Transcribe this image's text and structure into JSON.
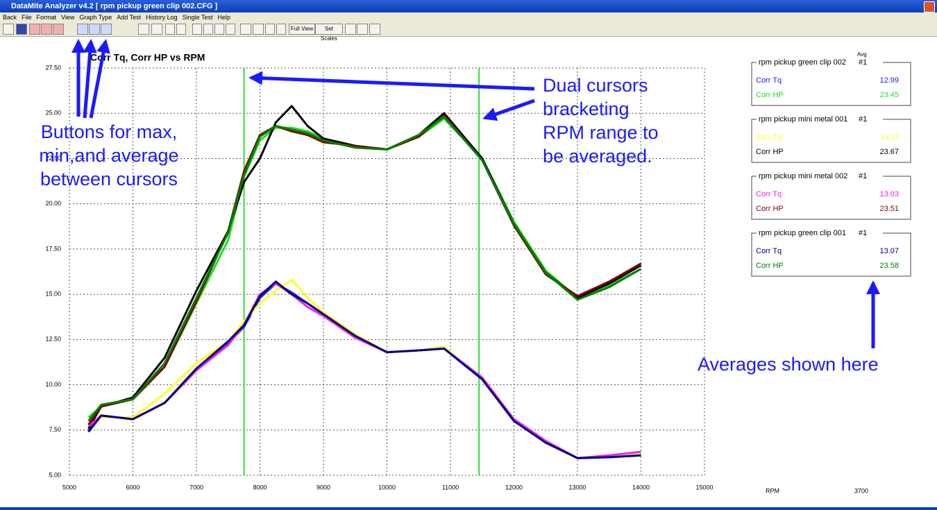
{
  "window": {
    "title": "DataMite Analyzer v4.2  [ rpm pickup green clip 002.CFG ]"
  },
  "menu": [
    "Back",
    "File",
    "Format",
    "View",
    "Graph Type",
    "Add Test",
    "History Log",
    "Single Test",
    "Help"
  ],
  "toolbar": {
    "buttons": [
      "Full View",
      "Set Scales"
    ]
  },
  "chart_data": {
    "type": "line",
    "title": "Corr Tq, Corr HP vs RPM",
    "x": [
      5300,
      5500,
      6000,
      6500,
      7000,
      7500,
      7750,
      8000,
      8250,
      8500,
      8750,
      9000,
      9500,
      10000,
      10500,
      10900,
      11500,
      12000,
      12500,
      13000,
      13500,
      14000
    ],
    "xlim": [
      5000,
      15000
    ],
    "xticks": [
      5000,
      6000,
      7000,
      8000,
      9000,
      10000,
      11000,
      12000,
      13000,
      14000,
      15000
    ],
    "ylim": [
      5,
      27.5
    ],
    "yticks": [
      {
        "value": 5,
        "label": "5.00"
      },
      {
        "value": 7.5,
        "label": "7.50"
      },
      {
        "value": 10,
        "label": "10.00"
      },
      {
        "value": 12.5,
        "label": "12.50"
      },
      {
        "value": 15,
        "label": "15.00"
      },
      {
        "value": 17.5,
        "label": "17.50"
      },
      {
        "value": 20,
        "label": "20.00"
      },
      {
        "value": 22.5,
        "label": "22.50"
      },
      {
        "value": 25,
        "label": "25.00"
      },
      {
        "value": 27.5,
        "label": "27.50"
      }
    ],
    "grid": true,
    "cursors": [
      7750,
      11450
    ],
    "cursor_color": "#33dd33",
    "avg_label": "Avg",
    "groups": [
      {
        "title": "rpm pickup green clip 002",
        "run": "#1"
      },
      {
        "title": "rpm pickup mini metal 001",
        "run": "#1"
      },
      {
        "title": "rpm pickup mini metal 002",
        "run": "#1"
      },
      {
        "title": "rpm pickup green clip 001",
        "run": "#1"
      }
    ],
    "series": [
      {
        "name": "Corr Tq",
        "color": "#1a1aff",
        "average": 12.99,
        "values": [
          7.5,
          8.3,
          8.1,
          9.0,
          10.8,
          12.3,
          13.2,
          14.8,
          15.6,
          15.1,
          14.5,
          13.9,
          12.7,
          11.8,
          11.9,
          12.0,
          10.3,
          8.0,
          6.8,
          5.95,
          6.0,
          6.1
        ]
      },
      {
        "name": "Corr HP",
        "color": "#22dd22",
        "average": 23.45,
        "values": [
          8.2,
          8.8,
          9.2,
          11.0,
          14.5,
          18.0,
          21.5,
          23.5,
          24.2,
          24.2,
          24.0,
          23.6,
          23.2,
          23.0,
          23.7,
          24.7,
          22.5,
          19.0,
          16.3,
          14.8,
          15.5,
          16.4
        ]
      },
      {
        "name": "Corr Tq",
        "color": "#ffff22",
        "average": 13.11,
        "values": [
          8.0,
          8.2,
          8.2,
          9.5,
          11.2,
          12.4,
          13.5,
          14.5,
          15.2,
          15.8,
          14.8,
          14.0,
          12.8,
          11.8,
          11.9,
          12.1,
          10.3,
          8.0,
          6.8,
          5.95,
          6.1,
          6.2
        ]
      },
      {
        "name": "Corr HP",
        "color": "#000000",
        "average": 23.67,
        "values": [
          7.6,
          8.8,
          9.3,
          11.5,
          15.2,
          18.5,
          21.2,
          22.5,
          24.5,
          25.4,
          24.3,
          23.6,
          23.2,
          23.0,
          23.8,
          25.0,
          22.5,
          18.9,
          16.2,
          14.8,
          15.6,
          16.6
        ]
      },
      {
        "name": "Corr Tq",
        "color": "#ee22ee",
        "average": 13.03,
        "values": [
          7.7,
          8.3,
          8.1,
          9.0,
          10.8,
          12.2,
          13.3,
          15.0,
          15.6,
          15.0,
          14.3,
          13.8,
          12.6,
          11.8,
          11.9,
          12.0,
          10.4,
          8.1,
          6.9,
          5.95,
          6.1,
          6.3
        ]
      },
      {
        "name": "Corr HP",
        "color": "#800000",
        "average": 23.51,
        "values": [
          7.8,
          8.8,
          9.2,
          11.0,
          14.6,
          18.5,
          21.8,
          23.8,
          24.3,
          24.0,
          23.8,
          23.4,
          23.2,
          23.0,
          23.7,
          24.9,
          22.4,
          18.8,
          16.1,
          14.9,
          15.7,
          16.7
        ]
      },
      {
        "name": "Corr Tq",
        "color": "#000080",
        "average": 13.07,
        "values": [
          7.4,
          8.3,
          8.1,
          9.0,
          10.9,
          12.4,
          13.3,
          14.9,
          15.7,
          15.0,
          14.5,
          13.9,
          12.7,
          11.8,
          11.9,
          12.0,
          10.3,
          8.0,
          6.8,
          5.95,
          6.0,
          6.1
        ]
      },
      {
        "name": "Corr HP",
        "color": "#008000",
        "average": 23.58,
        "values": [
          8.0,
          8.9,
          9.2,
          11.2,
          14.8,
          18.4,
          21.6,
          23.7,
          24.3,
          24.1,
          23.9,
          23.5,
          23.1,
          23.0,
          23.8,
          24.8,
          22.4,
          18.9,
          16.2,
          14.7,
          15.4,
          16.4
        ]
      }
    ],
    "readout": {
      "label": "RPM",
      "value": 3700
    },
    "annotations": {
      "buttons": [
        "Buttons for max,",
        " min,and average",
        "between cursors"
      ],
      "cursors": [
        "Dual cursors",
        "bracketing",
        "RPM range to",
        "be averaged."
      ],
      "averages": "Averages shown here"
    }
  }
}
